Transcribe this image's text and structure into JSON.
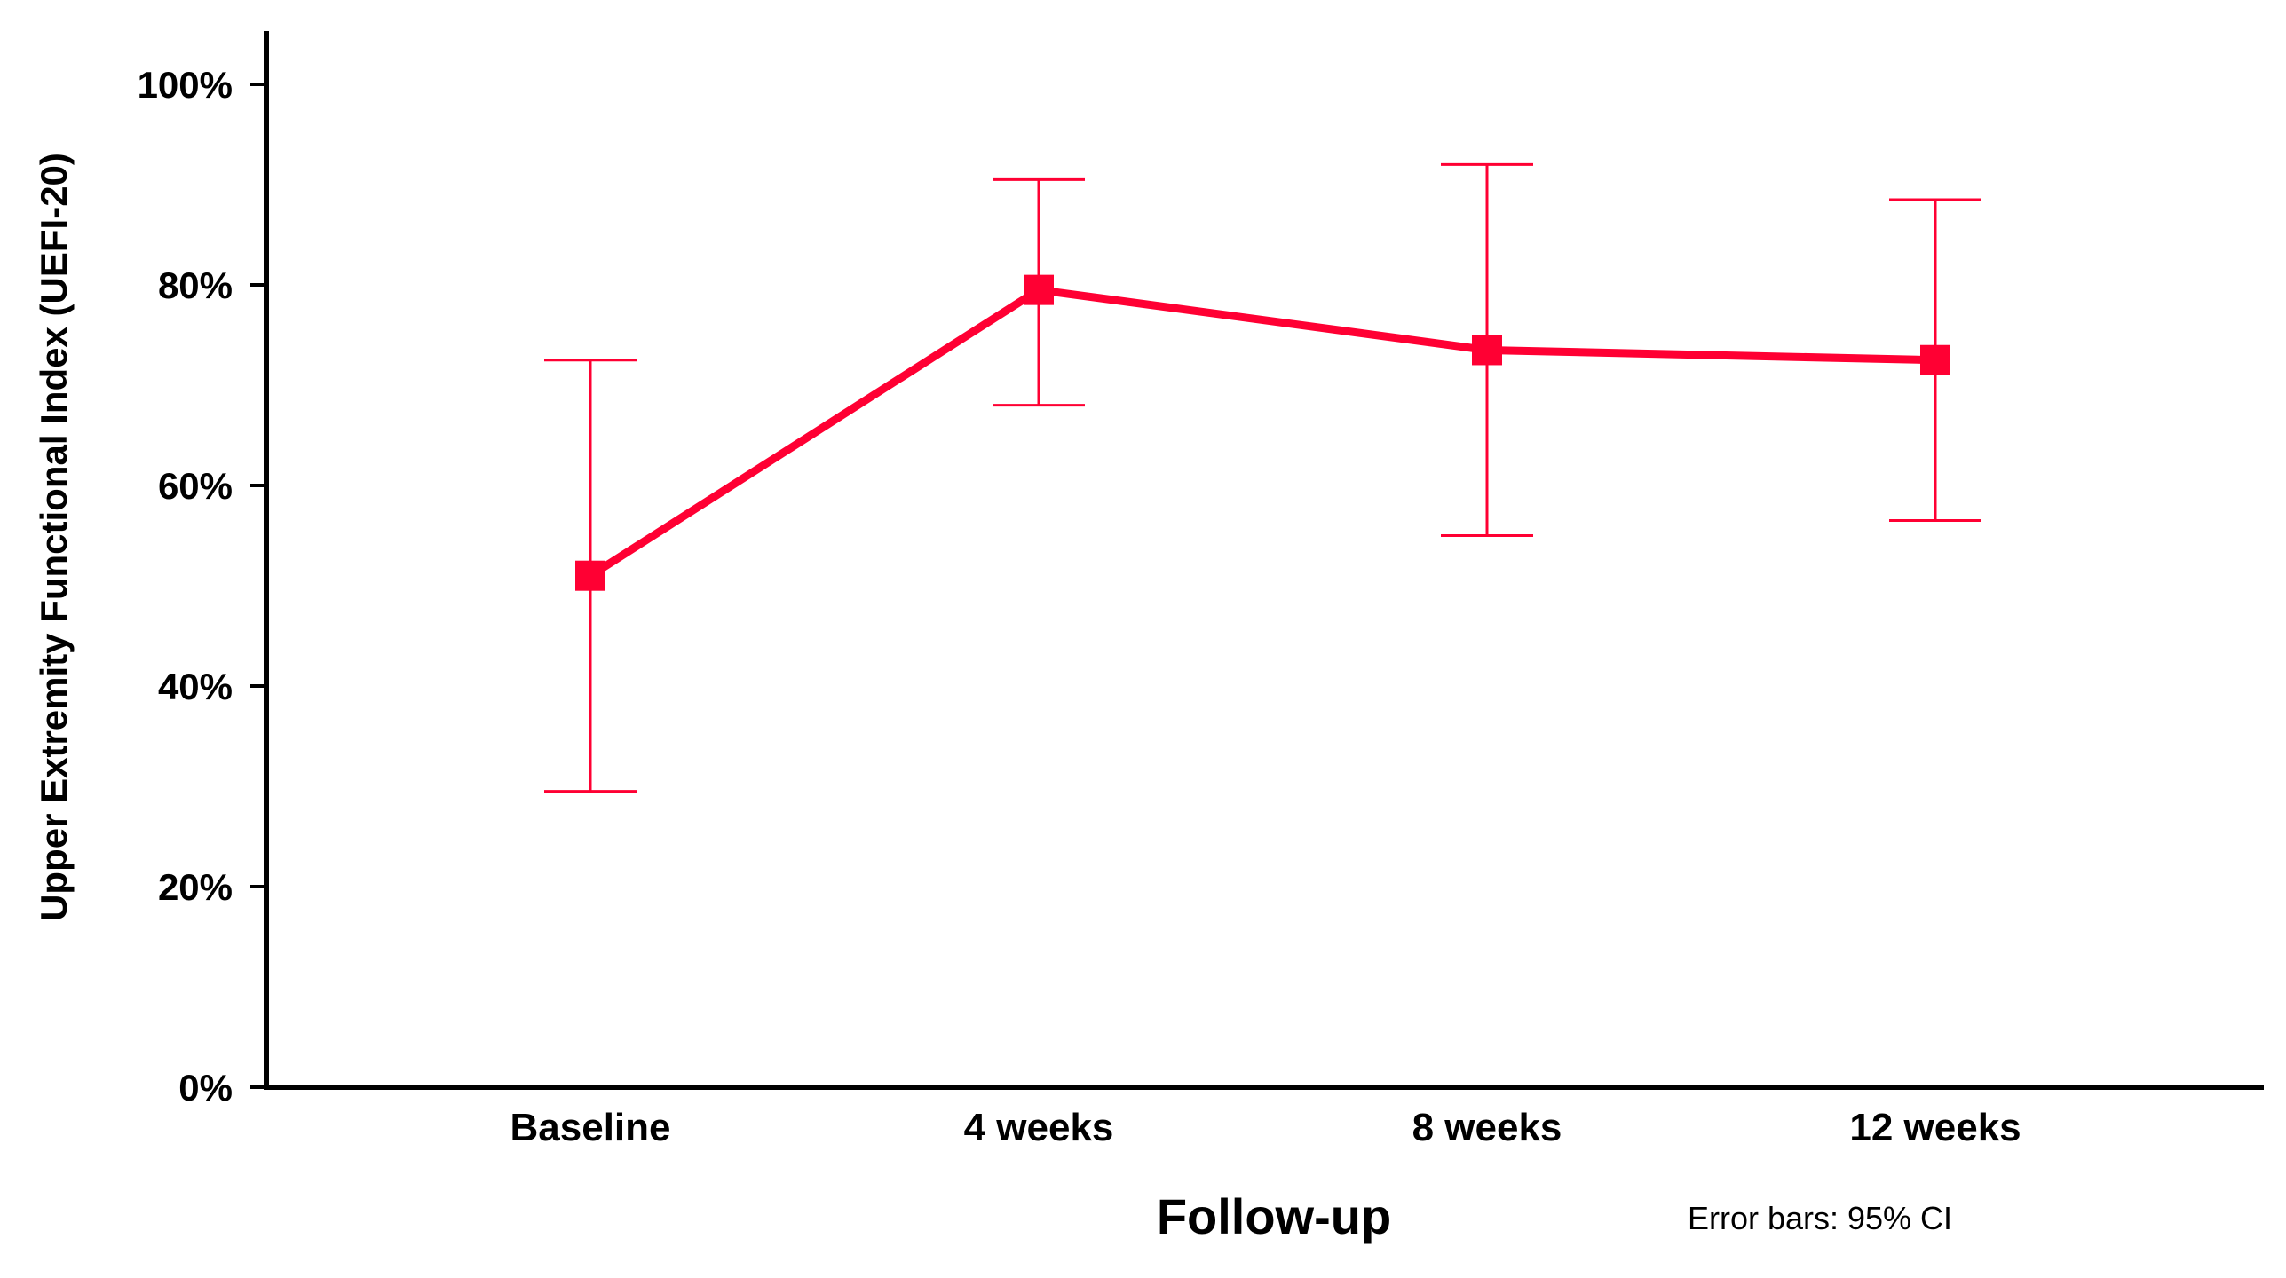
{
  "chart_data": {
    "type": "line",
    "categories": [
      "Baseline",
      "4 weeks",
      "8 weeks",
      "12 weeks"
    ],
    "series": [
      {
        "values": [
          51,
          79.5,
          73.5,
          72.5
        ],
        "ci_lower": [
          29.5,
          68,
          55,
          56.5
        ],
        "ci_upper": [
          72.5,
          90.5,
          92,
          88.5
        ]
      }
    ],
    "ylim": [
      0,
      100
    ],
    "yticks": [
      0,
      20,
      40,
      60,
      80,
      100
    ],
    "ytick_labels": [
      "0%",
      "20%",
      "40%",
      "60%",
      "80%",
      "100%"
    ],
    "xlabel": "Follow-up",
    "ylabel": "Upper Extremity Functional Index (UEFI-20)",
    "note": "Error bars: 95% CI",
    "grid": false,
    "color": "#ff0033"
  }
}
